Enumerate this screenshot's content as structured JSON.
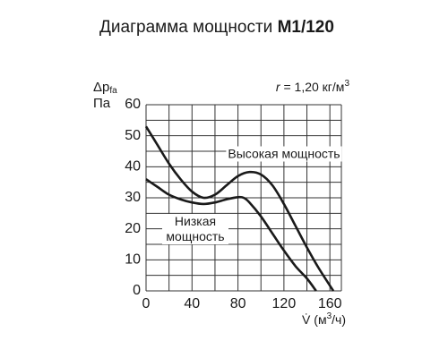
{
  "chart_data": {
    "type": "line",
    "title": "Диаграмма мощности",
    "title_model": "M1/120",
    "ylabel": "Δp",
    "ylabel_sub": "fa",
    "yunit": "Па",
    "annotation": {
      "var": "r",
      "text": " = 1,20 кг/м",
      "sup": "3"
    },
    "xlabel": {
      "var": "V̇",
      "text": " (м",
      "sup": "3",
      "tail": "/ч)"
    },
    "xlim": [
      0,
      170
    ],
    "ylim": [
      0,
      60
    ],
    "xticks": [
      0,
      40,
      80,
      120,
      160
    ],
    "yticks": [
      0,
      10,
      20,
      30,
      40,
      50,
      60
    ],
    "xgrid": [
      0,
      20,
      40,
      60,
      80,
      100,
      120,
      140,
      160,
      170
    ],
    "ygrid": [
      0,
      5,
      10,
      15,
      20,
      25,
      30,
      35,
      40,
      45,
      50,
      55,
      60
    ],
    "series": [
      {
        "name": "Высокая мощность",
        "color": "#1a1a1a",
        "x": [
          0,
          10,
          20,
          30,
          40,
          50,
          60,
          70,
          80,
          90,
          100,
          110,
          120,
          130,
          140,
          150,
          163
        ],
        "values": [
          53,
          47,
          41,
          36,
          32,
          30,
          31,
          34,
          37,
          38.3,
          37.5,
          34,
          28,
          21,
          14,
          7.5,
          0
        ]
      },
      {
        "name": "Низкая мощность",
        "color": "#1a1a1a",
        "x": [
          0,
          10,
          20,
          30,
          40,
          50,
          60,
          70,
          80,
          85,
          90,
          100,
          110,
          120,
          130,
          140,
          148
        ],
        "values": [
          36,
          33.5,
          31,
          29.5,
          28.5,
          28,
          28.5,
          29.5,
          30.2,
          30,
          28.5,
          24,
          18.5,
          13,
          8,
          4,
          0
        ]
      }
    ]
  }
}
